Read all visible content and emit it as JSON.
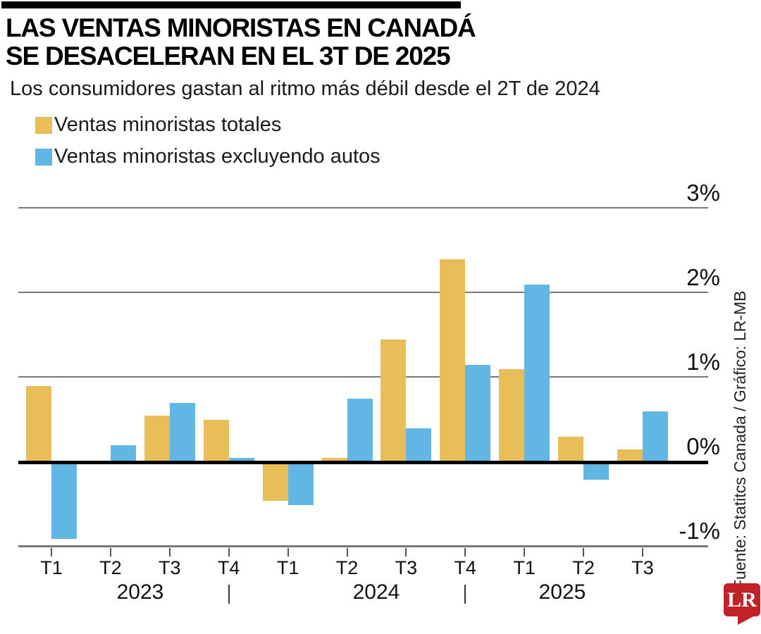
{
  "header": {
    "title_line1": "LAS VENTAS MINORISTAS EN CANADÁ",
    "title_line2": "SE DESACELERAN EN EL 3T DE 2025",
    "subtitle": "Los consumidores gastan al ritmo más débil desde el 2T de 2024"
  },
  "legend": {
    "items": [
      {
        "label": "Ventas minoristas totales",
        "color": "#E7BE58"
      },
      {
        "label": "Ventas minoristas excluyendo autos",
        "color": "#62B6E4"
      }
    ]
  },
  "chart_data": {
    "type": "bar",
    "categories": [
      "T1",
      "T2",
      "T3",
      "T4",
      "T1",
      "T2",
      "T3",
      "T4",
      "T1",
      "T2",
      "T3"
    ],
    "year_groups": [
      {
        "label": "2023",
        "quarters": 4
      },
      {
        "label": "2024",
        "quarters": 4
      },
      {
        "label": "2025",
        "quarters": 3
      }
    ],
    "series": [
      {
        "name": "Ventas minoristas totales",
        "color": "#E7BE58",
        "values": [
          0.9,
          0,
          0.55,
          0.5,
          -0.45,
          0.05,
          1.45,
          2.4,
          1.1,
          0.3,
          0.15
        ]
      },
      {
        "name": "Ventas minoristas excluyendo autos",
        "color": "#62B6E4",
        "values": [
          -0.9,
          0.2,
          0.7,
          0.05,
          -0.5,
          0.75,
          0.4,
          1.15,
          2.1,
          -0.2,
          0.6
        ]
      }
    ],
    "ylim": [
      -1,
      3
    ],
    "yticks": [
      {
        "label": "3%",
        "value": 3
      },
      {
        "label": "2%",
        "value": 2
      },
      {
        "label": "1%",
        "value": 1
      },
      {
        "label": "0%",
        "value": 0
      },
      {
        "label": "-1%",
        "value": -1
      }
    ],
    "grid": true,
    "legend_position": "top-left",
    "axis_colors": {
      "gridline": "#787878",
      "zero_line": "#000000",
      "tick": "#555555"
    }
  },
  "footer": {
    "source": "Fuente: Statitcs Canada / Gráfico: LR-MB",
    "logo": {
      "text": "LR",
      "background": "#C22127",
      "text_color": "#FFFFFF"
    }
  }
}
